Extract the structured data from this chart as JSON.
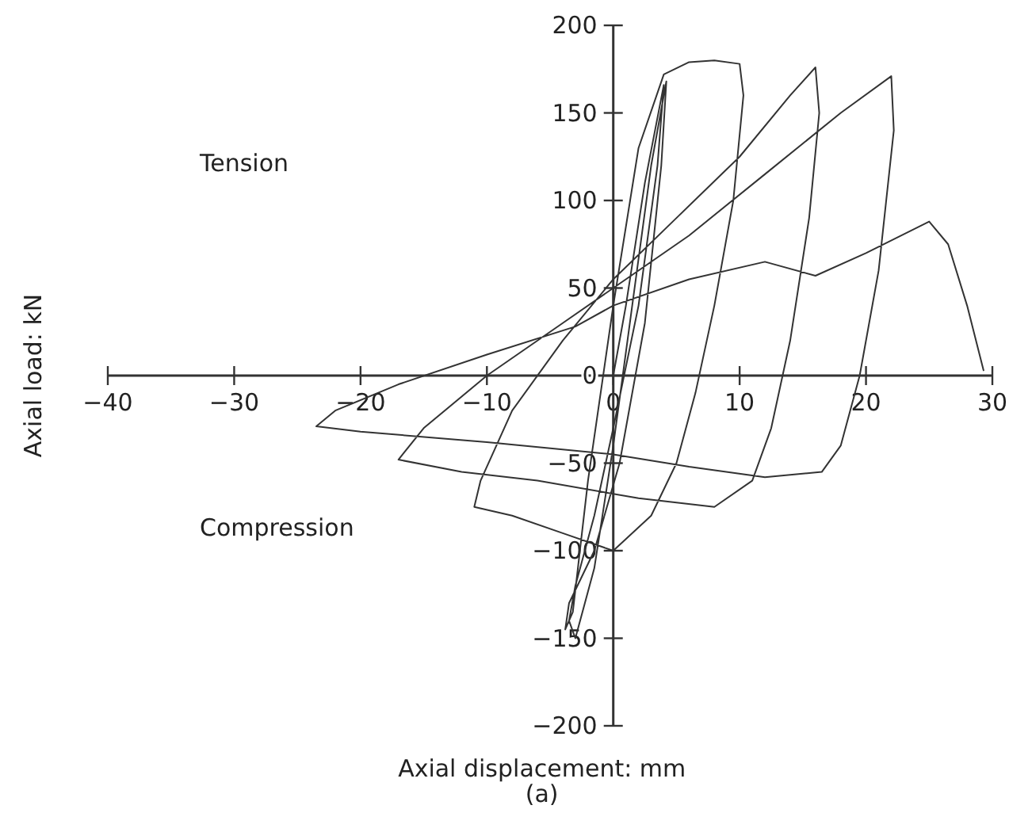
{
  "chart_data": {
    "type": "line",
    "xlabel": "Axial displacement: mm",
    "ylabel": "Axial load: kN",
    "annotations": [
      "Tension",
      "Compression",
      "(a)"
    ],
    "xlim": [
      -40,
      30
    ],
    "xticks": [
      -40,
      -30,
      -20,
      -10,
      0,
      10,
      20,
      30
    ],
    "ylim": [
      -200,
      200
    ],
    "yticks": [
      -200,
      -150,
      -100,
      -50,
      0,
      50,
      100,
      150,
      200
    ],
    "grid": false,
    "line_style": "solid",
    "series": [
      {
        "color": "#333333",
        "x": [
          0,
          1,
          2.5,
          4,
          3.5,
          2,
          0,
          -1.5,
          -3,
          -3.5,
          -3,
          -1.5,
          0,
          1.5,
          3,
          4.2,
          3.8,
          2.5,
          0.5,
          -1.5,
          -3.5,
          -3.8,
          -3.2,
          -2,
          0,
          2,
          4,
          6,
          8,
          10,
          10.3,
          9.5,
          8,
          6.5,
          5,
          3,
          0,
          -4,
          -8,
          -11,
          -10.5,
          -8,
          -4,
          0,
          5,
          10,
          14,
          16,
          16.3,
          15.5,
          14,
          12.5,
          11,
          8,
          2,
          -6,
          -12,
          -17,
          -15,
          -10,
          -4,
          0,
          6,
          12,
          18,
          22,
          22.2,
          21,
          19.5,
          18,
          16.5,
          12,
          6,
          0,
          -10,
          -20,
          -23.5,
          -22,
          -17,
          -10,
          -3,
          0,
          6,
          12,
          16,
          20,
          25,
          26.5,
          28,
          29.3
        ],
        "values": [
          0,
          40,
          110,
          166,
          120,
          40,
          -30,
          -80,
          -120,
          -140,
          -150,
          -110,
          -40,
          40,
          120,
          168,
          120,
          30,
          -50,
          -100,
          -130,
          -145,
          -135,
          -60,
          40,
          130,
          172,
          179,
          180,
          178,
          160,
          100,
          40,
          -10,
          -50,
          -80,
          -100,
          -90,
          -80,
          -75,
          -60,
          -20,
          20,
          55,
          90,
          125,
          160,
          176,
          150,
          90,
          20,
          -30,
          -60,
          -75,
          -70,
          -60,
          -55,
          -48,
          -30,
          0,
          30,
          50,
          80,
          115,
          150,
          171,
          140,
          60,
          0,
          -40,
          -55,
          -58,
          -52,
          -45,
          -38,
          -32,
          -29,
          -20,
          -5,
          12,
          28,
          40,
          55,
          65,
          57,
          70,
          88,
          75,
          40,
          3
        ]
      }
    ]
  }
}
